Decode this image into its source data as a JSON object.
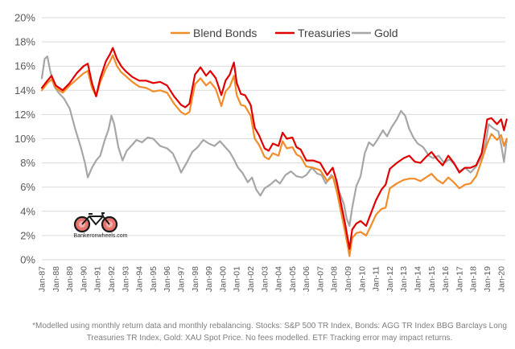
{
  "chart_data": {
    "type": "line",
    "title": "",
    "xlabel": "",
    "ylabel": "",
    "ylim": [
      0,
      20
    ],
    "yticks": [
      "0%",
      "2%",
      "4%",
      "6%",
      "8%",
      "10%",
      "12%",
      "14%",
      "16%",
      "18%",
      "20%"
    ],
    "xticks": [
      "Jan-87",
      "Jan-88",
      "Jan-89",
      "Jan-90",
      "Jan-91",
      "Jan-92",
      "Jan-93",
      "Jan-94",
      "Jan-95",
      "Jan-96",
      "Jan-97",
      "Jan-98",
      "Jan-99",
      "Jan-00",
      "Jan-01",
      "Jan-02",
      "Jan-03",
      "Jan-04",
      "Jan-05",
      "Jan-06",
      "Jan-07",
      "Jan-08",
      "Jan-09",
      "Jan-10",
      "Jan-11",
      "Jan-12",
      "Jan-13",
      "Jan-14",
      "Jan-15",
      "Jan-16",
      "Jan-17",
      "Jan-18",
      "Jan-19",
      "Jan-20"
    ],
    "grid": "horizontal",
    "legend_position": "top",
    "series": [
      {
        "name": "Blend Bonds",
        "color": "#F28C28",
        "points": [
          [
            1987.0,
            14.0
          ],
          [
            1987.4,
            14.6
          ],
          [
            1987.7,
            14.9
          ],
          [
            1988.0,
            14.2
          ],
          [
            1988.5,
            13.8
          ],
          [
            1989.0,
            14.4
          ],
          [
            1989.5,
            14.9
          ],
          [
            1990.0,
            15.4
          ],
          [
            1990.3,
            15.6
          ],
          [
            1990.6,
            14.2
          ],
          [
            1990.9,
            13.5
          ],
          [
            1991.2,
            14.7
          ],
          [
            1991.6,
            15.8
          ],
          [
            1991.9,
            16.4
          ],
          [
            1992.1,
            16.9
          ],
          [
            1992.4,
            16.0
          ],
          [
            1992.7,
            15.5
          ],
          [
            1993.0,
            15.2
          ],
          [
            1993.5,
            14.7
          ],
          [
            1994.0,
            14.3
          ],
          [
            1994.5,
            14.2
          ],
          [
            1995.0,
            13.9
          ],
          [
            1995.5,
            14.0
          ],
          [
            1996.0,
            13.8
          ],
          [
            1996.5,
            12.9
          ],
          [
            1997.0,
            12.2
          ],
          [
            1997.3,
            12.0
          ],
          [
            1997.6,
            12.2
          ],
          [
            1998.0,
            14.5
          ],
          [
            1998.4,
            15.0
          ],
          [
            1998.8,
            14.4
          ],
          [
            1999.1,
            14.7
          ],
          [
            1999.5,
            14.1
          ],
          [
            1999.9,
            12.7
          ],
          [
            2000.2,
            13.9
          ],
          [
            2000.5,
            14.3
          ],
          [
            2000.8,
            15.2
          ],
          [
            2001.0,
            13.6
          ],
          [
            2001.3,
            12.8
          ],
          [
            2001.6,
            12.7
          ],
          [
            2002.0,
            11.9
          ],
          [
            2002.3,
            10.0
          ],
          [
            2002.6,
            9.5
          ],
          [
            2003.0,
            8.5
          ],
          [
            2003.3,
            8.3
          ],
          [
            2003.6,
            8.8
          ],
          [
            2004.0,
            8.6
          ],
          [
            2004.3,
            9.8
          ],
          [
            2004.6,
            9.2
          ],
          [
            2005.0,
            9.3
          ],
          [
            2005.3,
            8.7
          ],
          [
            2005.6,
            8.5
          ],
          [
            2006.0,
            7.7
          ],
          [
            2006.5,
            7.6
          ],
          [
            2007.0,
            7.4
          ],
          [
            2007.5,
            6.5
          ],
          [
            2007.9,
            6.9
          ],
          [
            2008.2,
            5.6
          ],
          [
            2008.5,
            3.9
          ],
          [
            2008.8,
            2.2
          ],
          [
            2009.0,
            1.0
          ],
          [
            2009.1,
            0.3
          ],
          [
            2009.3,
            1.8
          ],
          [
            2009.6,
            2.2
          ],
          [
            2009.9,
            2.3
          ],
          [
            2010.3,
            2.0
          ],
          [
            2010.6,
            2.7
          ],
          [
            2011.0,
            3.7
          ],
          [
            2011.4,
            4.2
          ],
          [
            2011.7,
            4.3
          ],
          [
            2012.0,
            5.9
          ],
          [
            2012.5,
            6.3
          ],
          [
            2013.0,
            6.6
          ],
          [
            2013.4,
            6.7
          ],
          [
            2013.8,
            6.7
          ],
          [
            2014.2,
            6.5
          ],
          [
            2014.6,
            6.8
          ],
          [
            2015.0,
            7.1
          ],
          [
            2015.4,
            6.6
          ],
          [
            2015.8,
            6.3
          ],
          [
            2016.2,
            6.8
          ],
          [
            2016.6,
            6.4
          ],
          [
            2017.0,
            5.9
          ],
          [
            2017.4,
            6.2
          ],
          [
            2017.8,
            6.3
          ],
          [
            2018.2,
            6.9
          ],
          [
            2018.6,
            8.2
          ],
          [
            2019.0,
            9.6
          ],
          [
            2019.3,
            10.4
          ],
          [
            2019.7,
            9.9
          ],
          [
            2020.0,
            10.3
          ],
          [
            2020.2,
            9.4
          ],
          [
            2020.4,
            10.0
          ]
        ]
      },
      {
        "name": "Treasuries",
        "color": "#E00000",
        "points": [
          [
            1987.0,
            14.2
          ],
          [
            1987.4,
            14.8
          ],
          [
            1987.7,
            15.2
          ],
          [
            1988.0,
            14.4
          ],
          [
            1988.5,
            14.0
          ],
          [
            1989.0,
            14.6
          ],
          [
            1989.5,
            15.4
          ],
          [
            1990.0,
            16.0
          ],
          [
            1990.3,
            16.2
          ],
          [
            1990.6,
            14.6
          ],
          [
            1990.9,
            13.5
          ],
          [
            1991.2,
            15.0
          ],
          [
            1991.6,
            16.4
          ],
          [
            1991.9,
            17.0
          ],
          [
            1992.1,
            17.5
          ],
          [
            1992.4,
            16.6
          ],
          [
            1992.7,
            16.0
          ],
          [
            1993.0,
            15.6
          ],
          [
            1993.5,
            15.1
          ],
          [
            1994.0,
            14.8
          ],
          [
            1994.5,
            14.8
          ],
          [
            1995.0,
            14.6
          ],
          [
            1995.5,
            14.7
          ],
          [
            1996.0,
            14.4
          ],
          [
            1996.5,
            13.5
          ],
          [
            1997.0,
            12.8
          ],
          [
            1997.3,
            12.6
          ],
          [
            1997.6,
            12.9
          ],
          [
            1998.0,
            15.3
          ],
          [
            1998.4,
            15.9
          ],
          [
            1998.8,
            15.2
          ],
          [
            1999.1,
            15.6
          ],
          [
            1999.5,
            15.0
          ],
          [
            1999.9,
            13.6
          ],
          [
            2000.2,
            14.8
          ],
          [
            2000.5,
            15.3
          ],
          [
            2000.8,
            16.3
          ],
          [
            2001.0,
            14.6
          ],
          [
            2001.3,
            13.7
          ],
          [
            2001.6,
            13.6
          ],
          [
            2002.0,
            12.8
          ],
          [
            2002.3,
            10.9
          ],
          [
            2002.6,
            10.3
          ],
          [
            2003.0,
            9.2
          ],
          [
            2003.3,
            9.0
          ],
          [
            2003.6,
            9.6
          ],
          [
            2004.0,
            9.4
          ],
          [
            2004.3,
            10.5
          ],
          [
            2004.6,
            10.0
          ],
          [
            2005.0,
            10.1
          ],
          [
            2005.3,
            9.3
          ],
          [
            2005.6,
            9.1
          ],
          [
            2006.0,
            8.2
          ],
          [
            2006.5,
            8.2
          ],
          [
            2007.0,
            8.0
          ],
          [
            2007.5,
            7.0
          ],
          [
            2007.9,
            7.6
          ],
          [
            2008.2,
            6.4
          ],
          [
            2008.5,
            4.6
          ],
          [
            2008.8,
            2.9
          ],
          [
            2009.0,
            1.6
          ],
          [
            2009.1,
            0.9
          ],
          [
            2009.3,
            2.5
          ],
          [
            2009.6,
            3.0
          ],
          [
            2009.9,
            3.2
          ],
          [
            2010.3,
            2.8
          ],
          [
            2010.6,
            3.7
          ],
          [
            2011.0,
            4.9
          ],
          [
            2011.4,
            5.8
          ],
          [
            2011.7,
            6.2
          ],
          [
            2012.0,
            7.5
          ],
          [
            2012.5,
            8.0
          ],
          [
            2013.0,
            8.4
          ],
          [
            2013.4,
            8.6
          ],
          [
            2013.8,
            8.1
          ],
          [
            2014.2,
            8.0
          ],
          [
            2014.6,
            8.5
          ],
          [
            2015.0,
            8.9
          ],
          [
            2015.4,
            8.3
          ],
          [
            2015.8,
            7.8
          ],
          [
            2016.2,
            8.6
          ],
          [
            2016.6,
            8.0
          ],
          [
            2017.0,
            7.2
          ],
          [
            2017.4,
            7.6
          ],
          [
            2017.8,
            7.6
          ],
          [
            2018.2,
            7.8
          ],
          [
            2018.6,
            8.8
          ],
          [
            2019.0,
            11.6
          ],
          [
            2019.3,
            11.7
          ],
          [
            2019.7,
            11.2
          ],
          [
            2020.0,
            11.6
          ],
          [
            2020.2,
            10.7
          ],
          [
            2020.4,
            11.6
          ]
        ]
      },
      {
        "name": "Gold",
        "color": "#A6A6A6",
        "points": [
          [
            1987.0,
            15.0
          ],
          [
            1987.2,
            16.6
          ],
          [
            1987.4,
            16.8
          ],
          [
            1987.6,
            15.6
          ],
          [
            1987.9,
            14.3
          ],
          [
            1988.2,
            13.8
          ],
          [
            1988.6,
            13.3
          ],
          [
            1989.0,
            12.5
          ],
          [
            1989.4,
            10.8
          ],
          [
            1989.8,
            9.3
          ],
          [
            1990.1,
            8.0
          ],
          [
            1990.3,
            6.8
          ],
          [
            1990.6,
            7.6
          ],
          [
            1990.9,
            8.2
          ],
          [
            1991.2,
            8.6
          ],
          [
            1991.5,
            9.8
          ],
          [
            1991.8,
            10.8
          ],
          [
            1992.0,
            11.9
          ],
          [
            1992.2,
            11.2
          ],
          [
            1992.5,
            9.3
          ],
          [
            1992.8,
            8.2
          ],
          [
            1993.1,
            9.0
          ],
          [
            1993.5,
            9.5
          ],
          [
            1993.8,
            9.9
          ],
          [
            1994.2,
            9.7
          ],
          [
            1994.6,
            10.1
          ],
          [
            1995.0,
            10.0
          ],
          [
            1995.5,
            9.4
          ],
          [
            1996.0,
            9.2
          ],
          [
            1996.4,
            8.8
          ],
          [
            1996.8,
            7.8
          ],
          [
            1997.0,
            7.2
          ],
          [
            1997.4,
            8.0
          ],
          [
            1997.8,
            8.9
          ],
          [
            1998.2,
            9.3
          ],
          [
            1998.6,
            9.9
          ],
          [
            1999.0,
            9.6
          ],
          [
            1999.4,
            9.4
          ],
          [
            1999.8,
            9.8
          ],
          [
            2000.1,
            9.4
          ],
          [
            2000.5,
            8.9
          ],
          [
            2000.8,
            8.3
          ],
          [
            2001.1,
            7.6
          ],
          [
            2001.4,
            7.2
          ],
          [
            2001.8,
            6.4
          ],
          [
            2002.1,
            6.8
          ],
          [
            2002.4,
            5.8
          ],
          [
            2002.7,
            5.3
          ],
          [
            2003.0,
            5.9
          ],
          [
            2003.4,
            6.2
          ],
          [
            2003.8,
            6.6
          ],
          [
            2004.1,
            6.3
          ],
          [
            2004.5,
            7.0
          ],
          [
            2004.9,
            7.3
          ],
          [
            2005.3,
            6.9
          ],
          [
            2005.7,
            6.8
          ],
          [
            2006.0,
            7.0
          ],
          [
            2006.4,
            7.6
          ],
          [
            2006.8,
            7.1
          ],
          [
            2007.1,
            7.0
          ],
          [
            2007.4,
            6.3
          ],
          [
            2007.8,
            7.0
          ],
          [
            2008.1,
            6.4
          ],
          [
            2008.4,
            5.5
          ],
          [
            2008.7,
            4.6
          ],
          [
            2008.9,
            3.4
          ],
          [
            2009.1,
            2.8
          ],
          [
            2009.3,
            4.3
          ],
          [
            2009.6,
            6.1
          ],
          [
            2009.9,
            6.9
          ],
          [
            2010.2,
            8.8
          ],
          [
            2010.5,
            9.7
          ],
          [
            2010.8,
            9.4
          ],
          [
            2011.1,
            9.9
          ],
          [
            2011.5,
            10.7
          ],
          [
            2011.8,
            10.2
          ],
          [
            2012.1,
            10.9
          ],
          [
            2012.5,
            11.6
          ],
          [
            2012.8,
            12.3
          ],
          [
            2013.1,
            11.9
          ],
          [
            2013.4,
            10.8
          ],
          [
            2013.7,
            10.1
          ],
          [
            2014.0,
            9.6
          ],
          [
            2014.4,
            9.3
          ],
          [
            2014.8,
            8.6
          ],
          [
            2015.1,
            8.4
          ],
          [
            2015.5,
            8.6
          ],
          [
            2015.9,
            8.0
          ],
          [
            2016.3,
            8.3
          ],
          [
            2016.7,
            7.8
          ],
          [
            2017.0,
            7.3
          ],
          [
            2017.4,
            7.6
          ],
          [
            2017.8,
            7.2
          ],
          [
            2018.2,
            7.7
          ],
          [
            2018.6,
            8.5
          ],
          [
            2018.9,
            9.7
          ],
          [
            2019.1,
            11.2
          ],
          [
            2019.4,
            10.9
          ],
          [
            2019.8,
            10.6
          ],
          [
            2020.0,
            9.5
          ],
          [
            2020.2,
            8.1
          ],
          [
            2020.4,
            9.9
          ]
        ]
      }
    ]
  },
  "logo": {
    "text": "Bankeronwheels.com"
  },
  "footnote": {
    "line1": "*Modelled using monthly return data and monthly rebalancing. Stocks: S&P 500 TR Index, Bonds: AGG TR Index BBG Barclays Long",
    "line2": "Treasuries TR Index, Gold: XAU Spot Price. No fees modelled.  ETF Tracking error may impact returns."
  }
}
